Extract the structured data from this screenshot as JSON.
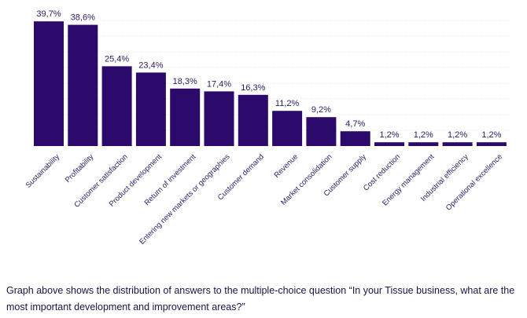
{
  "colors": {
    "bar": "#2b0a6b",
    "text": "#2b1a63",
    "grid": "#d9d9e3"
  },
  "caption": "Graph above shows the distribution of answers to the multiple-choice question “In your Tissue business, what are the most important development and improvement areas?”",
  "chart_data": {
    "type": "bar",
    "title": "",
    "xlabel": "",
    "ylabel": "",
    "ylim": [
      0,
      40
    ],
    "grid": true,
    "categories": [
      "Sustainability",
      "Profitability",
      "Customer satisfaction",
      "Product development",
      "Return of investment",
      "Entering new markets or geographies",
      "Customer demand",
      "Revenue",
      "Market consolidation",
      "Customer supply",
      "Cost reduction",
      "Energy management",
      "Industrial efficiency",
      "Operational excellence"
    ],
    "values": [
      39.7,
      38.6,
      25.4,
      23.4,
      18.3,
      17.4,
      16.3,
      11.2,
      9.2,
      4.7,
      1.2,
      1.2,
      1.2,
      1.2
    ],
    "value_labels": [
      "39,7%",
      "38,6%",
      "25,4%",
      "23,4%",
      "18,3%",
      "17,4%",
      "16,3%",
      "11,2%",
      "9,2%",
      "4,7%",
      "1,2%",
      "1,2%",
      "1,2%",
      "1,2%"
    ]
  }
}
